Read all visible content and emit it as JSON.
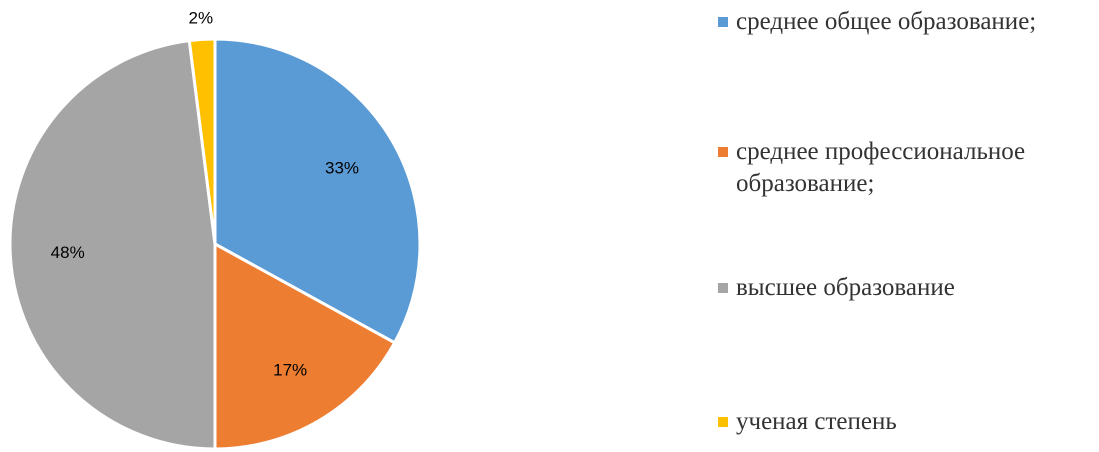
{
  "chart_data": {
    "type": "pie",
    "categories": [
      "среднее общее образование;",
      "среднее профессиональное образование;",
      "высшее образование",
      "ученая степень"
    ],
    "values": [
      33,
      17,
      48,
      2
    ],
    "value_labels": [
      "33%",
      "17%",
      "48%",
      "2%"
    ],
    "colors": [
      "#5b9bd5",
      "#ed7d31",
      "#a5a5a5",
      "#ffc000"
    ],
    "legend": "right"
  }
}
